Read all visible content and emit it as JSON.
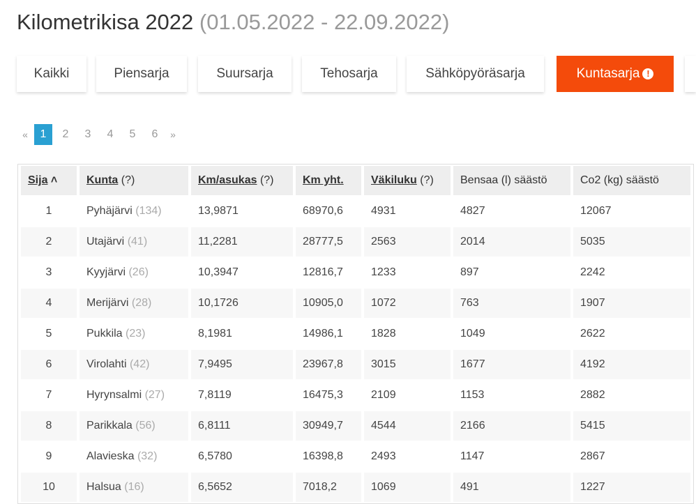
{
  "title": "Kilometrikisa 2022",
  "date_range": "(01.05.2022 - 22.09.2022)",
  "tabs": [
    {
      "label": "Kaikki"
    },
    {
      "label": "Piensarja"
    },
    {
      "label": "Suursarja"
    },
    {
      "label": "Tehosarja"
    },
    {
      "label": "Sähköpyöräsarja"
    },
    {
      "label": "Kuntasarja",
      "active": true,
      "icon": "exclamation-circle-icon"
    }
  ],
  "pagination": {
    "prev": "«",
    "pages": [
      "1",
      "2",
      "3",
      "4",
      "5",
      "6"
    ],
    "current": "1",
    "next": "»"
  },
  "colors": {
    "accent": "#f44b0b",
    "page_active": "#2aa0d2"
  },
  "table": {
    "headers": [
      {
        "label": "Sija",
        "sort": "ascending"
      },
      {
        "label": "Kunta",
        "hint": "(?)"
      },
      {
        "label": "Km/asukas",
        "hint": "(?)"
      },
      {
        "label": "Km yht."
      },
      {
        "label": "Väkiluku",
        "hint": "(?)"
      },
      {
        "label": "Bensaa (l) säästö"
      },
      {
        "label": "Co2 (kg) säästö"
      }
    ],
    "rows": [
      [
        "1",
        "Pyhäjärvi",
        "(134)",
        "13,9871",
        "68970,6",
        "4931",
        "4827",
        "12067"
      ],
      [
        "2",
        "Utajärvi",
        "(41)",
        "11,2281",
        "28777,5",
        "2563",
        "2014",
        "5035"
      ],
      [
        "3",
        "Kyyjärvi",
        "(26)",
        "10,3947",
        "12816,7",
        "1233",
        "897",
        "2242"
      ],
      [
        "4",
        "Merijärvi",
        "(28)",
        "10,1726",
        "10905,0",
        "1072",
        "763",
        "1907"
      ],
      [
        "5",
        "Pukkila",
        "(23)",
        "8,1981",
        "14986,1",
        "1828",
        "1049",
        "2622"
      ],
      [
        "6",
        "Virolahti",
        "(42)",
        "7,9495",
        "23967,8",
        "3015",
        "1677",
        "4192"
      ],
      [
        "7",
        "Hyrynsalmi",
        "(27)",
        "7,8119",
        "16475,3",
        "2109",
        "1153",
        "2882"
      ],
      [
        "8",
        "Parikkala",
        "(56)",
        "6,8111",
        "30949,7",
        "4544",
        "2166",
        "5415"
      ],
      [
        "9",
        "Alavieska",
        "(32)",
        "6,5780",
        "16398,8",
        "2493",
        "1147",
        "2867"
      ],
      [
        "10",
        "Halsua",
        "(16)",
        "6,5652",
        "7018,2",
        "1069",
        "491",
        "1227"
      ]
    ]
  }
}
